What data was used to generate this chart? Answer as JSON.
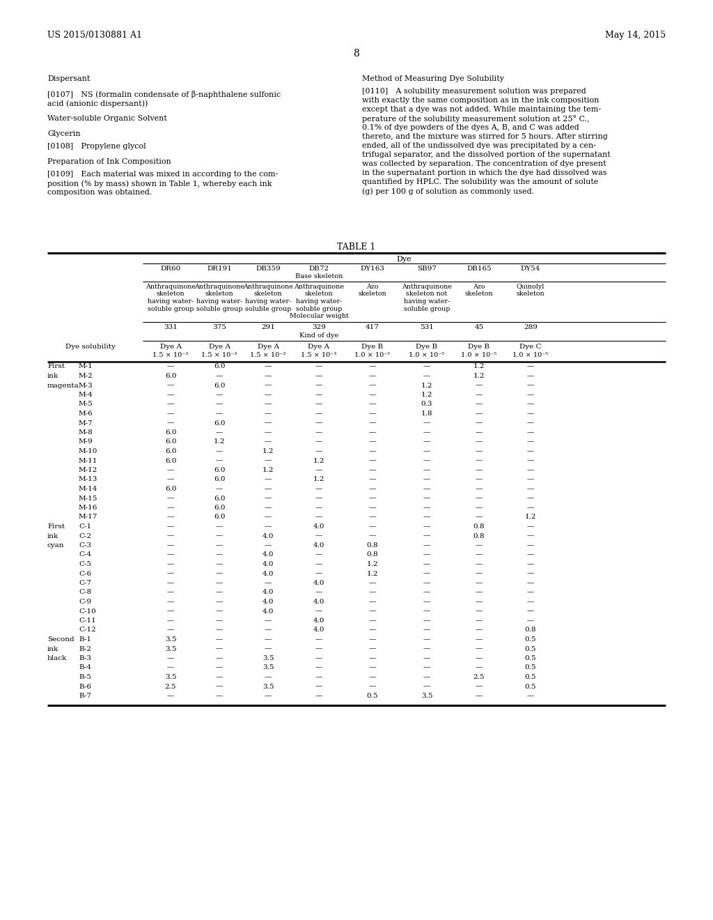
{
  "page_header_left": "US 2015/0130881 A1",
  "page_header_right": "May 14, 2015",
  "page_number": "8",
  "rows": [
    [
      "First",
      "M-1",
      "—",
      "6.0",
      "—",
      "—",
      "—",
      "—",
      "1.2",
      "—"
    ],
    [
      "ink",
      "M-2",
      "6.0",
      "—",
      "—",
      "—",
      "—",
      "—",
      "1.2",
      "—"
    ],
    [
      "magenta",
      "M-3",
      "—",
      "6.0",
      "—",
      "—",
      "—",
      "1.2",
      "—",
      "—"
    ],
    [
      "",
      "M-4",
      "—",
      "—",
      "—",
      "—",
      "—",
      "1.2",
      "—",
      "—"
    ],
    [
      "",
      "M-5",
      "—",
      "—",
      "—",
      "—",
      "—",
      "0.3",
      "—",
      "—"
    ],
    [
      "",
      "M-6",
      "—",
      "—",
      "—",
      "—",
      "—",
      "1.8",
      "—",
      "—"
    ],
    [
      "",
      "M-7",
      "—",
      "6.0",
      "—",
      "—",
      "—",
      "—",
      "—",
      "—"
    ],
    [
      "",
      "M-8",
      "6.0",
      "—",
      "—",
      "—",
      "—",
      "—",
      "—",
      "—"
    ],
    [
      "",
      "M-9",
      "6.0",
      "1.2",
      "—",
      "—",
      "—",
      "—",
      "—",
      "—"
    ],
    [
      "",
      "M-10",
      "6.0",
      "—",
      "1.2",
      "—",
      "—",
      "—",
      "—",
      "—"
    ],
    [
      "",
      "M-11",
      "6.0",
      "—",
      "—",
      "1.2",
      "—",
      "—",
      "—",
      "—"
    ],
    [
      "",
      "M-12",
      "—",
      "6.0",
      "1.2",
      "—",
      "—",
      "—",
      "—",
      "—"
    ],
    [
      "",
      "M-13",
      "—",
      "6.0",
      "—",
      "1.2",
      "—",
      "—",
      "—",
      "—"
    ],
    [
      "",
      "M-14",
      "6.0",
      "—",
      "—",
      "—",
      "—",
      "—",
      "—",
      "—"
    ],
    [
      "",
      "M-15",
      "—",
      "6.0",
      "—",
      "—",
      "—",
      "—",
      "—",
      "—"
    ],
    [
      "",
      "M-16",
      "—",
      "6.0",
      "—",
      "—",
      "—",
      "—",
      "—",
      "—"
    ],
    [
      "",
      "M-17",
      "—",
      "6.0",
      "—",
      "—",
      "—",
      "—",
      "—",
      "1.2"
    ],
    [
      "First",
      "C-1",
      "—",
      "—",
      "—",
      "4.0",
      "—",
      "—",
      "0.8",
      "—"
    ],
    [
      "ink",
      "C-2",
      "—",
      "—",
      "4.0",
      "—",
      "—",
      "—",
      "0.8",
      "—"
    ],
    [
      "cyan",
      "C-3",
      "—",
      "—",
      "—",
      "4.0",
      "0.8",
      "—",
      "—",
      "—"
    ],
    [
      "",
      "C-4",
      "—",
      "—",
      "4.0",
      "—",
      "0.8",
      "—",
      "—",
      "—"
    ],
    [
      "",
      "C-5",
      "—",
      "—",
      "4.0",
      "—",
      "1.2",
      "—",
      "—",
      "—"
    ],
    [
      "",
      "C-6",
      "—",
      "—",
      "4.0",
      "—",
      "1.2",
      "—",
      "—",
      "—"
    ],
    [
      "",
      "C-7",
      "—",
      "—",
      "—",
      "4.0",
      "—",
      "—",
      "—",
      "—"
    ],
    [
      "",
      "C-8",
      "—",
      "—",
      "4.0",
      "—",
      "—",
      "—",
      "—",
      "—"
    ],
    [
      "",
      "C-9",
      "—",
      "—",
      "4.0",
      "4.0",
      "—",
      "—",
      "—",
      "—"
    ],
    [
      "",
      "C-10",
      "—",
      "—",
      "4.0",
      "—",
      "—",
      "—",
      "—",
      "—"
    ],
    [
      "",
      "C-11",
      "—",
      "—",
      "—",
      "4.0",
      "—",
      "—",
      "—",
      "—"
    ],
    [
      "",
      "C-12",
      "—",
      "—",
      "—",
      "4.0",
      "—",
      "—",
      "—",
      "0.8"
    ],
    [
      "Second",
      "B-1",
      "3.5",
      "—",
      "—",
      "—",
      "—",
      "—",
      "—",
      "0.5"
    ],
    [
      "ink",
      "B-2",
      "3.5",
      "—",
      "—",
      "—",
      "—",
      "—",
      "—",
      "0.5"
    ],
    [
      "black",
      "B-3",
      "—",
      "—",
      "3.5",
      "—",
      "—",
      "—",
      "—",
      "0.5"
    ],
    [
      "",
      "B-4",
      "—",
      "—",
      "3.5",
      "—",
      "—",
      "—",
      "—",
      "0.5"
    ],
    [
      "",
      "B-5",
      "3.5",
      "—",
      "—",
      "—",
      "—",
      "—",
      "2.5",
      "0.5"
    ],
    [
      "",
      "B-6",
      "2.5",
      "—",
      "3.5",
      "—",
      "—",
      "—",
      "—",
      "0.5"
    ],
    [
      "",
      "B-7",
      "—",
      "—",
      "—",
      "—",
      "0.5",
      "3.5",
      "—",
      "—"
    ]
  ]
}
